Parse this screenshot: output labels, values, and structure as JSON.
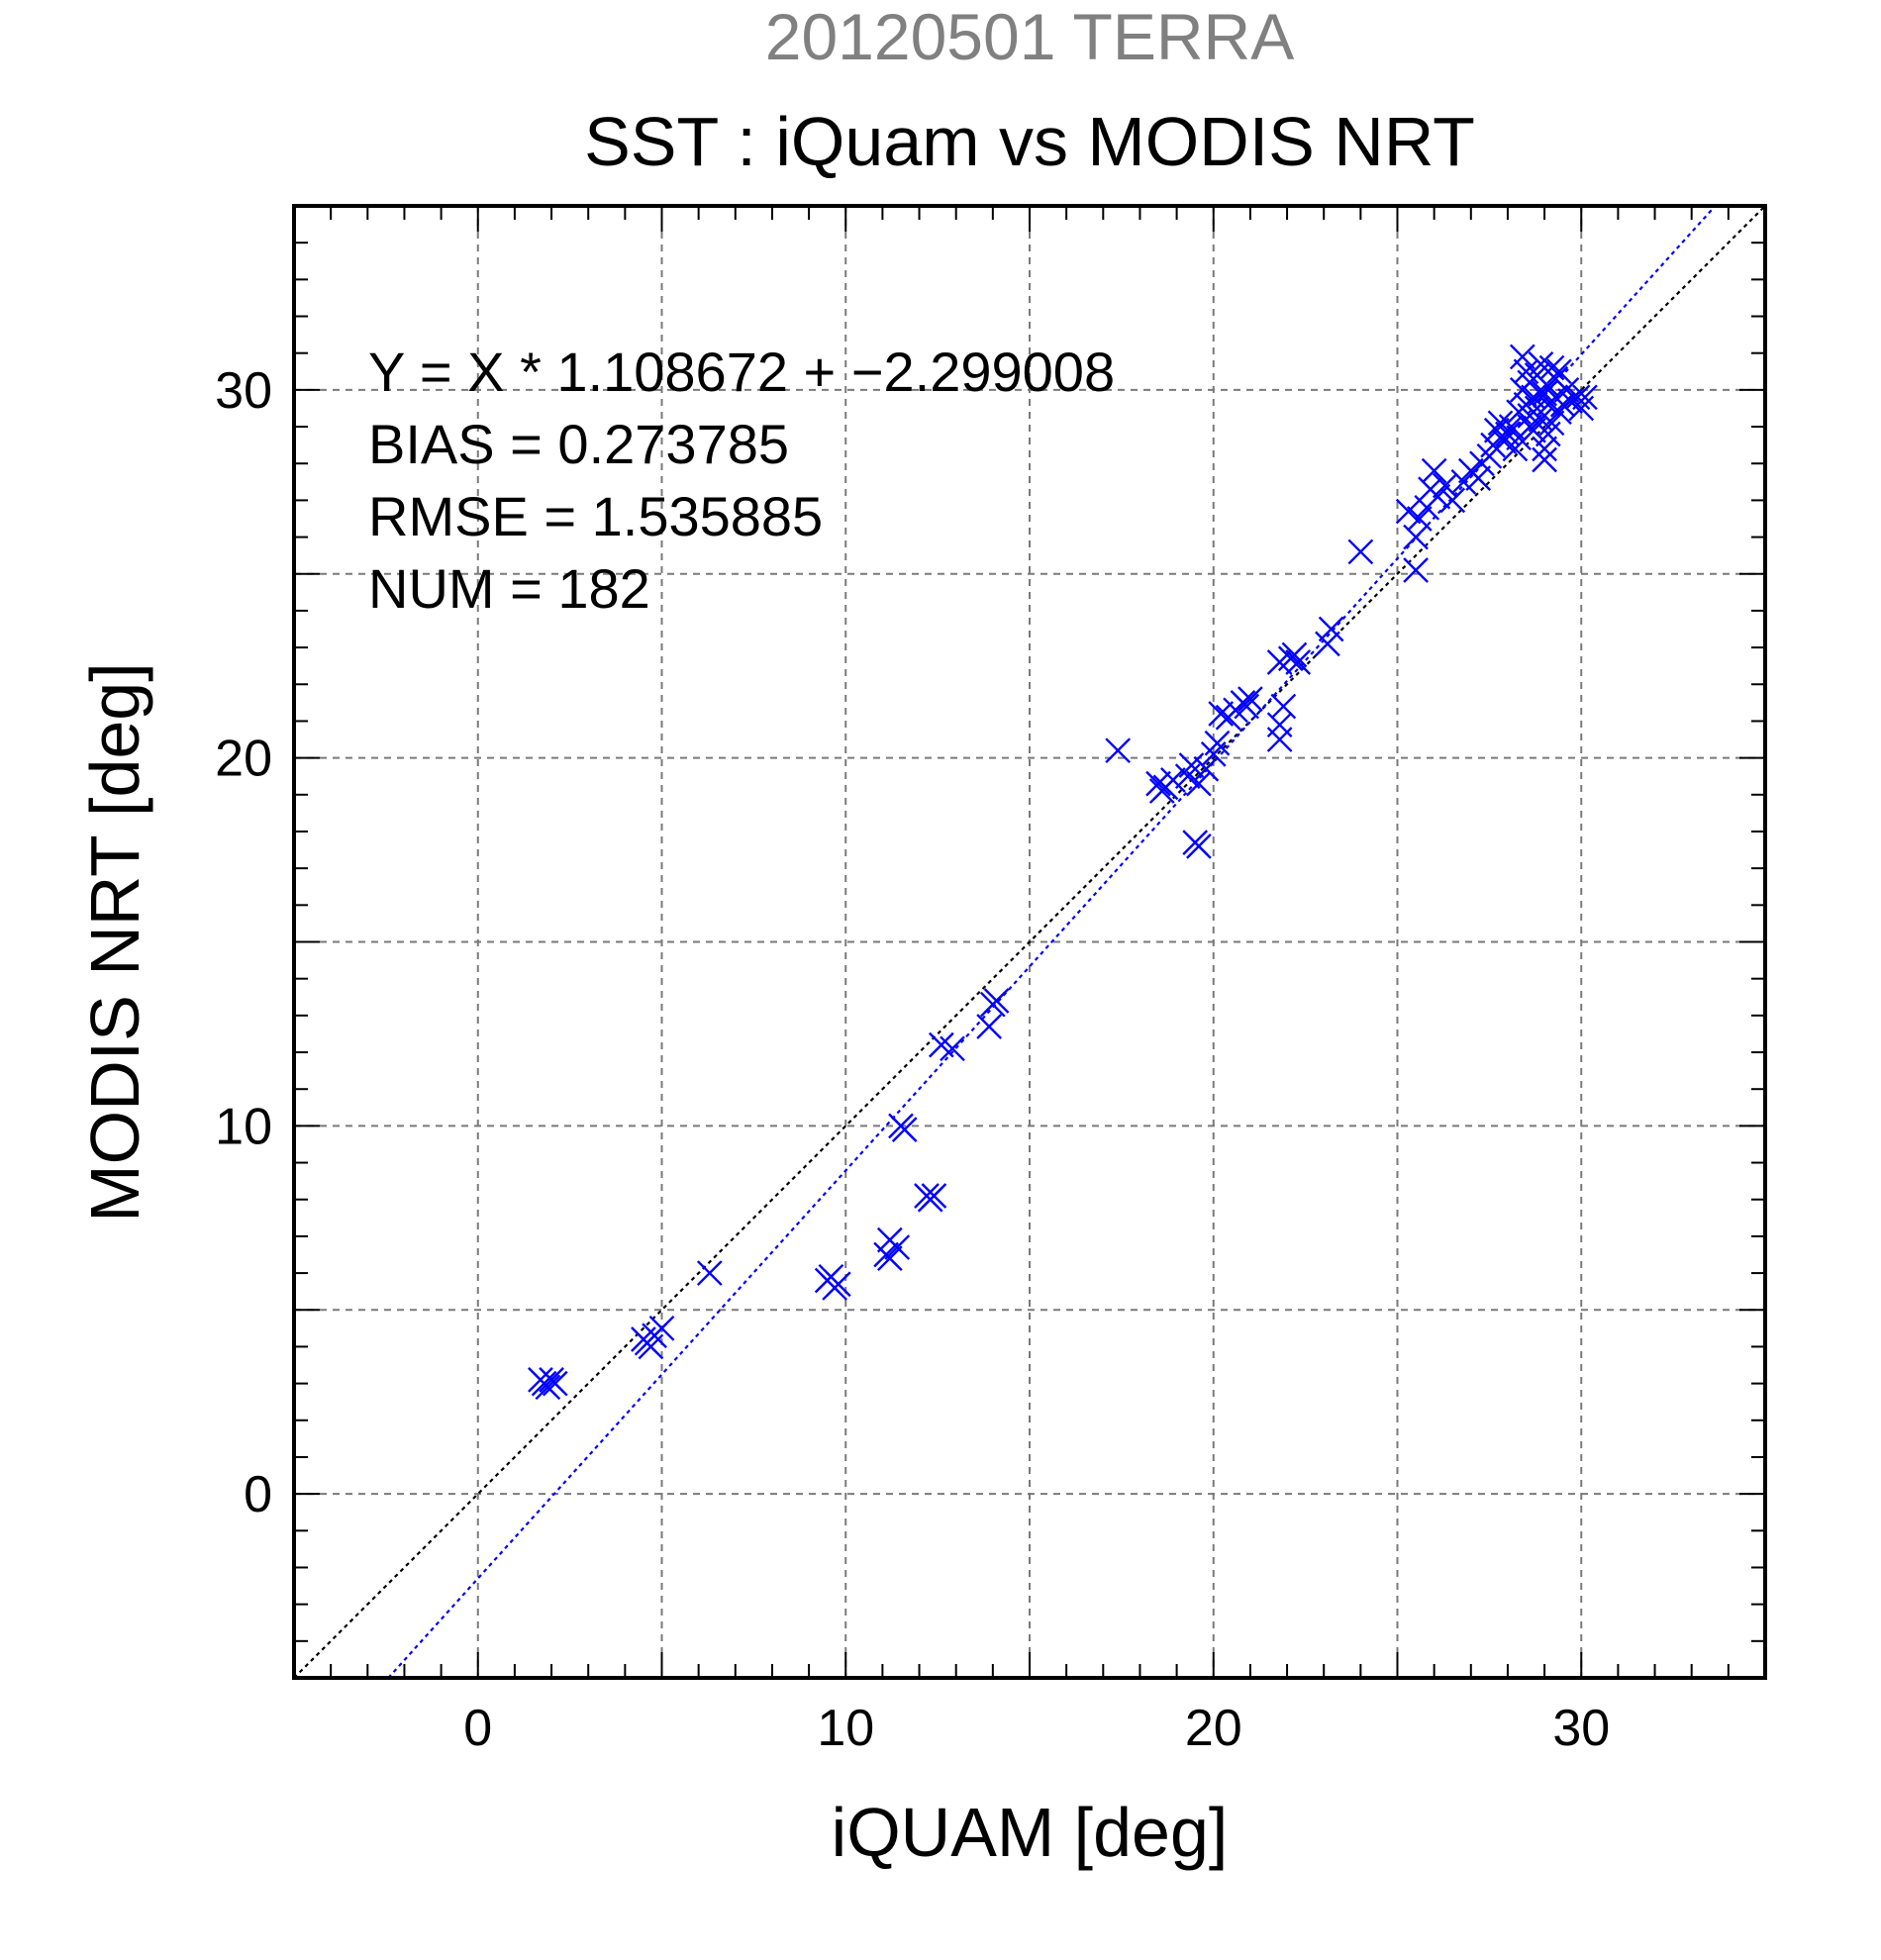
{
  "chart_data": {
    "type": "scatter",
    "date_title": "20120501 TERRA",
    "title": "SST : iQuam vs MODIS NRT",
    "xlabel": "iQUAM [deg]",
    "ylabel": "MODIS NRT [deg]",
    "xlim": [
      -5,
      35
    ],
    "ylim": [
      -5,
      35
    ],
    "x_ticks": [
      0,
      10,
      20,
      30
    ],
    "y_ticks": [
      0,
      10,
      20,
      30
    ],
    "grid": true,
    "annotations": [
      "Y = X * 1.108672 + −2.299008",
      "BIAS = 0.273785",
      "RMSE = 1.535885",
      "NUM = 182"
    ],
    "lines": [
      {
        "name": "1:1",
        "color": "#000000",
        "slope": 1,
        "intercept": 0
      },
      {
        "name": "fit",
        "color": "#0000ff",
        "slope": 1.108672,
        "intercept": -2.299008
      }
    ],
    "marker_color": "#0000ff",
    "points": [
      [
        1.7,
        3.1
      ],
      [
        1.8,
        3.0
      ],
      [
        2.0,
        3.1
      ],
      [
        1.9,
        2.9
      ],
      [
        2.1,
        3.0
      ],
      [
        4.5,
        4.2
      ],
      [
        4.7,
        4.0
      ],
      [
        4.6,
        4.1
      ],
      [
        4.8,
        4.3
      ],
      [
        5.0,
        4.5
      ],
      [
        6.3,
        6.0
      ],
      [
        9.5,
        5.8
      ],
      [
        9.7,
        5.6
      ],
      [
        9.6,
        5.9
      ],
      [
        9.8,
        5.7
      ],
      [
        11.1,
        6.5
      ],
      [
        11.2,
        6.9
      ],
      [
        11.4,
        6.7
      ],
      [
        11.2,
        6.4
      ],
      [
        11.5,
        10.0
      ],
      [
        11.6,
        9.9
      ],
      [
        12.2,
        8.1
      ],
      [
        12.4,
        8.1
      ],
      [
        12.3,
        8.0
      ],
      [
        12.6,
        12.2
      ],
      [
        12.9,
        12.1
      ],
      [
        13.9,
        12.7
      ],
      [
        14.0,
        13.3
      ],
      [
        14.1,
        13.4
      ],
      [
        17.4,
        20.2
      ],
      [
        18.5,
        19.3
      ],
      [
        18.7,
        19.2
      ],
      [
        18.9,
        19.4
      ],
      [
        18.6,
        19.1
      ],
      [
        19.3,
        19.5
      ],
      [
        19.4,
        19.8
      ],
      [
        19.6,
        19.3
      ],
      [
        19.5,
        17.7
      ],
      [
        19.6,
        17.6
      ],
      [
        19.8,
        19.7
      ],
      [
        20.0,
        20.1
      ],
      [
        20.1,
        20.4
      ],
      [
        20.2,
        21.2
      ],
      [
        20.4,
        21.1
      ],
      [
        20.6,
        21.3
      ],
      [
        20.8,
        21.5
      ],
      [
        21.0,
        21.6
      ],
      [
        20.9,
        21.4
      ],
      [
        21.8,
        20.5
      ],
      [
        21.8,
        20.9
      ],
      [
        21.9,
        21.4
      ],
      [
        21.8,
        22.6
      ],
      [
        22.1,
        22.7
      ],
      [
        22.3,
        22.6
      ],
      [
        22.2,
        22.8
      ],
      [
        23.1,
        23.1
      ],
      [
        23.2,
        23.5
      ],
      [
        24.0,
        25.6
      ],
      [
        25.3,
        26.7
      ],
      [
        25.5,
        25.1
      ],
      [
        25.5,
        26.0
      ],
      [
        25.6,
        26.5
      ],
      [
        25.8,
        26.8
      ],
      [
        25.9,
        27.3
      ],
      [
        26.0,
        27.8
      ],
      [
        26.1,
        27.1
      ],
      [
        26.3,
        27.4
      ],
      [
        26.5,
        27.0
      ],
      [
        26.8,
        27.5
      ],
      [
        27.0,
        27.8
      ],
      [
        27.2,
        27.6
      ],
      [
        27.3,
        28.0
      ],
      [
        27.5,
        28.2
      ],
      [
        27.6,
        28.5
      ],
      [
        27.7,
        28.9
      ],
      [
        27.8,
        29.1
      ],
      [
        27.9,
        28.6
      ],
      [
        28.0,
        28.8
      ],
      [
        28.1,
        29.0
      ],
      [
        28.2,
        28.4
      ],
      [
        28.3,
        28.7
      ],
      [
        28.3,
        29.4
      ],
      [
        28.4,
        30.0
      ],
      [
        28.5,
        30.5
      ],
      [
        28.4,
        30.9
      ],
      [
        28.6,
        29.3
      ],
      [
        28.6,
        30.2
      ],
      [
        28.7,
        29.8
      ],
      [
        28.7,
        28.9
      ],
      [
        28.8,
        29.5
      ],
      [
        28.8,
        30.4
      ],
      [
        28.9,
        29.2
      ],
      [
        28.9,
        30.7
      ],
      [
        29.0,
        29.9
      ],
      [
        29.0,
        28.4
      ],
      [
        29.0,
        28.1
      ],
      [
        29.1,
        30.1
      ],
      [
        29.1,
        29.6
      ],
      [
        29.2,
        30.6
      ],
      [
        29.2,
        29.1
      ],
      [
        29.3,
        30.3
      ],
      [
        29.3,
        29.8
      ],
      [
        29.4,
        30.5
      ],
      [
        29.4,
        29.4
      ],
      [
        29.5,
        29.6
      ],
      [
        29.6,
        30.0
      ],
      [
        29.7,
        29.7
      ],
      [
        29.9,
        29.8
      ],
      [
        30.0,
        29.5
      ],
      [
        30.1,
        29.8
      ],
      [
        28.5,
        29.6
      ],
      [
        28.6,
        29.0
      ],
      [
        28.9,
        29.9
      ],
      [
        29.1,
        28.8
      ]
    ]
  }
}
